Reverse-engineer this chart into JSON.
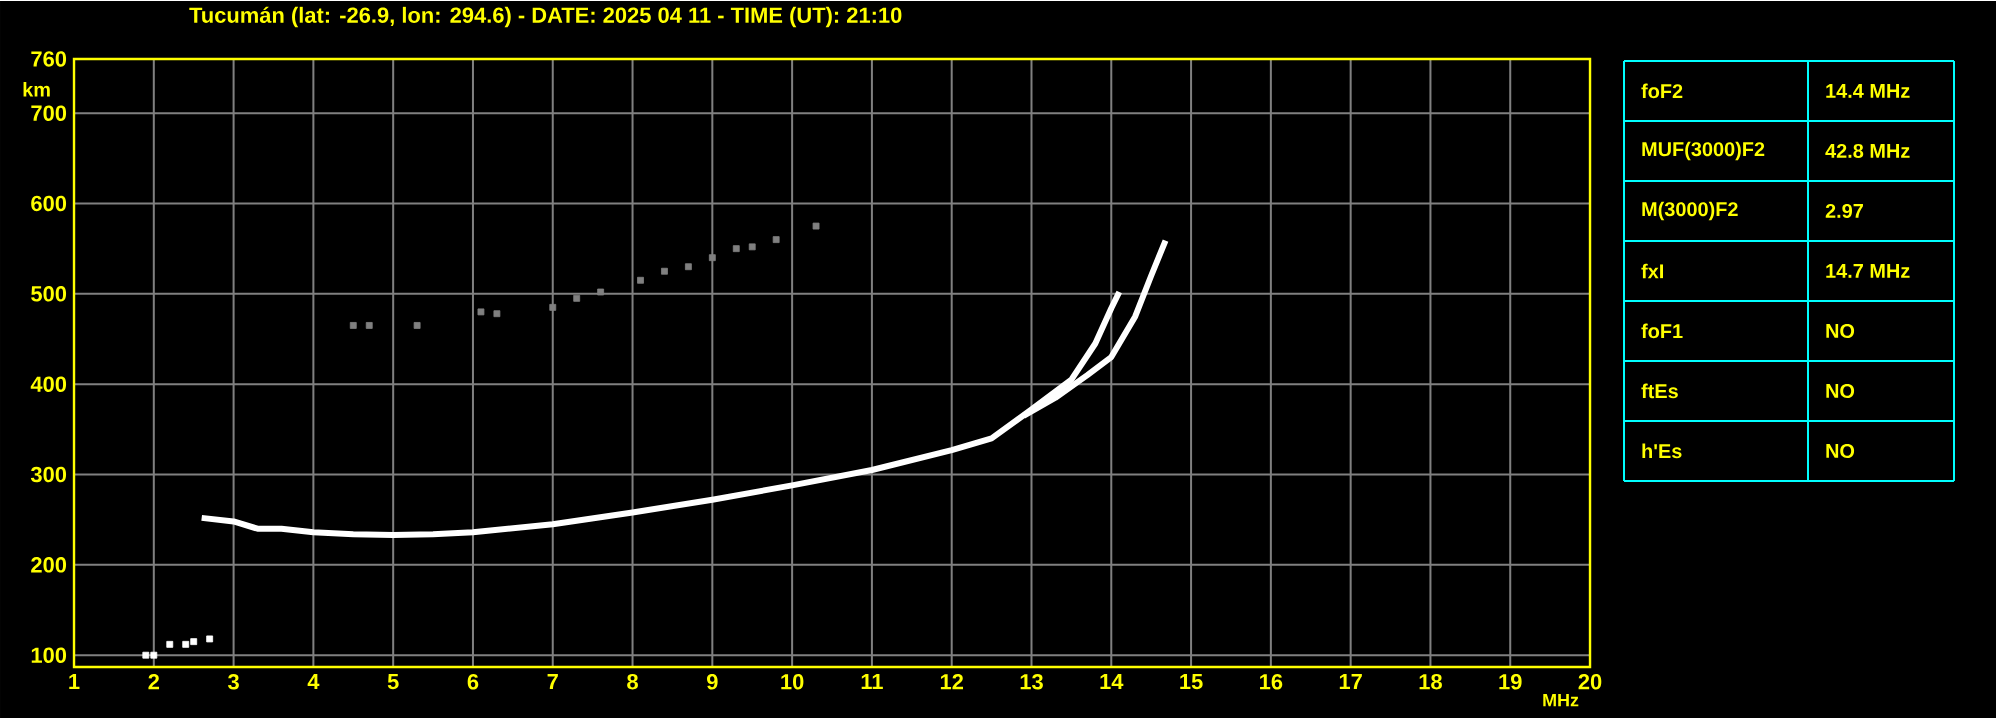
{
  "chart_data": {
    "type": "line",
    "title": "Tucumán (lat: -26.9, lon: 294.6) - DATE: 2025 04 11 - TIME (UT): 21:10",
    "xlabel": "MHz",
    "ylabel": "km",
    "xlim": [
      1,
      20
    ],
    "ylim": [
      87,
      760
    ],
    "xticks": [
      1,
      2,
      3,
      4,
      5,
      6,
      7,
      8,
      9,
      10,
      11,
      12,
      13,
      14,
      15,
      16,
      17,
      18,
      19,
      20
    ],
    "yticks": [
      100,
      200,
      300,
      400,
      500,
      600,
      700,
      760
    ],
    "grid": true,
    "line_style": "solid",
    "series": [
      {
        "color": "#ffffff",
        "x": [
          2.6,
          3.0,
          3.3,
          3.6,
          4.0,
          4.5,
          5.0,
          5.5,
          6.0,
          7.0,
          8.0,
          9.0,
          10.0,
          11.0,
          12.0,
          12.5,
          13.0,
          13.5,
          13.8,
          14.0,
          14.1
        ],
        "values": [
          252,
          248,
          240,
          240,
          236,
          234,
          233,
          234,
          236,
          245,
          258,
          272,
          288,
          305,
          327,
          340,
          372,
          405,
          445,
          484,
          502
        ]
      },
      {
        "color": "#ffffff",
        "x": [
          12.9,
          13.3,
          13.7,
          14.0,
          14.3,
          14.5,
          14.68
        ],
        "values": [
          365,
          385,
          410,
          430,
          475,
          520,
          559
        ]
      },
      {
        "type": "scatter",
        "marker": "square",
        "color": "#ffffff",
        "x": [
          1.9,
          2.0,
          2.2,
          2.4,
          2.5,
          2.7
        ],
        "values": [
          100,
          100,
          112,
          112,
          115,
          118
        ]
      },
      {
        "type": "scatter",
        "marker": "square",
        "color": "#808080",
        "x": [
          4.5,
          4.7,
          5.3,
          6.1,
          6.3,
          7.0,
          7.3,
          7.6,
          8.1,
          8.4,
          8.7,
          9.0,
          9.3,
          9.5,
          9.8,
          10.3
        ],
        "values": [
          465,
          465,
          465,
          480,
          478,
          485,
          495,
          502,
          515,
          525,
          530,
          540,
          550,
          552,
          560,
          575
        ]
      }
    ],
    "annotations": [
      "foF2",
      "14.4 MHz",
      "MUF(3000)F2",
      "42.8 MHz",
      "M(3000)F2",
      "2.97",
      "fxI",
      "14.7 MHz",
      "foF1",
      "NO",
      "ftEs",
      "NO",
      "h'Es",
      "NO"
    ]
  }
}
